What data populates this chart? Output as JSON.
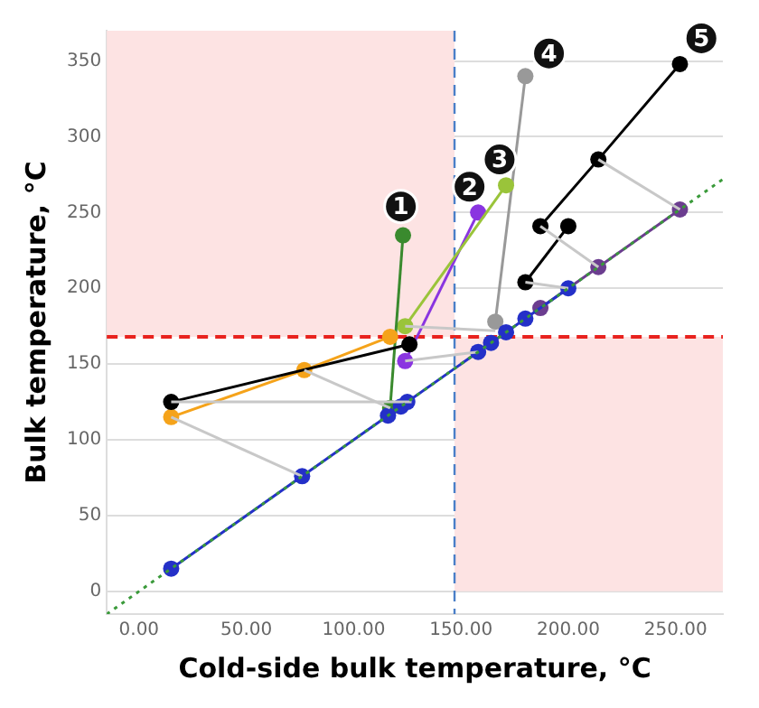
{
  "chart_data": {
    "type": "line",
    "xlabel": "Cold-side bulk temperature, °C",
    "ylabel": "Bulk temperature, °C",
    "xlim": [
      -15,
      272
    ],
    "ylim": [
      -15,
      370
    ],
    "xticks": [
      {
        "value": 0,
        "label": "0.00"
      },
      {
        "value": 50,
        "label": "50.00"
      },
      {
        "value": 100,
        "label": "100.00"
      },
      {
        "value": 150,
        "label": "150.00"
      },
      {
        "value": 200,
        "label": "200.00"
      },
      {
        "value": 250,
        "label": "250.00"
      }
    ],
    "yticks": [
      0,
      50,
      100,
      150,
      200,
      250,
      300,
      350
    ],
    "grid": "y",
    "legend": false,
    "marker": "circle",
    "line_style": "solid",
    "bands": [
      {
        "axis": "y",
        "from": 168,
        "to": 370,
        "color": "#fde3e3"
      },
      {
        "axis": "y",
        "from": 0,
        "to": 168,
        "color": "#fde3e3"
      }
    ],
    "ref_lines": [
      {
        "axis": "y",
        "value": 168,
        "color": "#e8231f",
        "line_style": "dashed"
      },
      {
        "axis": "x",
        "value": 147,
        "color": "#4a7fc8",
        "line_style": "dashed"
      }
    ],
    "series": [
      {
        "color": "#3a9a3a",
        "x": [
          -15,
          272
        ],
        "values": [
          -15,
          272
        ],
        "marker": "none",
        "line_style": "dotted"
      },
      {
        "color": "#c8c8c8",
        "x": [
          15,
          76
        ],
        "values": [
          115,
          76
        ],
        "marker": "none"
      },
      {
        "color": "#c8c8c8",
        "x": [
          77,
          117
        ],
        "values": [
          146,
          121
        ],
        "marker": "none"
      },
      {
        "color": "#c8c8c8",
        "x": [
          15,
          127
        ],
        "values": [
          125,
          125
        ],
        "marker": "none"
      },
      {
        "color": "#c8c8c8",
        "x": [
          124,
          166
        ],
        "values": [
          175,
          172
        ],
        "marker": "none"
      },
      {
        "color": "#c8c8c8",
        "x": [
          124,
          158
        ],
        "values": [
          152,
          158
        ],
        "marker": "none"
      },
      {
        "color": "#c8c8c8",
        "x": [
          187,
          214
        ],
        "values": [
          241,
          214
        ],
        "marker": "none"
      },
      {
        "color": "#c8c8c8",
        "x": [
          214,
          252
        ],
        "values": [
          285,
          252
        ],
        "marker": "none"
      },
      {
        "color": "#c8c8c8",
        "x": [
          180,
          200
        ],
        "values": [
          204,
          200
        ],
        "marker": "none"
      },
      {
        "color": "#2430c8",
        "x": [
          15,
          76,
          116,
          122,
          125,
          158,
          164,
          171,
          180,
          200
        ],
        "values": [
          15,
          76,
          116,
          122,
          125,
          158,
          164,
          171,
          180,
          200
        ]
      },
      {
        "color": "#6b3d8f",
        "x": [
          187,
          214,
          252
        ],
        "values": [
          187,
          214,
          252
        ]
      },
      {
        "color": "#000000",
        "x": [
          15,
          126
        ],
        "values": [
          125,
          163
        ]
      },
      {
        "color": "#f5a31a",
        "x": [
          15,
          77,
          117
        ],
        "values": [
          115,
          146,
          168
        ]
      },
      {
        "color": "#3a8a2e",
        "x": [
          117,
          123
        ],
        "values": [
          121,
          235
        ]
      },
      {
        "color": "#9ac43a",
        "x": [
          124,
          171
        ],
        "values": [
          175,
          268
        ]
      },
      {
        "color": "#8a35e0",
        "x": [
          124,
          158
        ],
        "values": [
          152,
          250
        ]
      },
      {
        "color": "#999999",
        "x": [
          166,
          180
        ],
        "values": [
          178,
          340
        ]
      },
      {
        "color": "#000000",
        "x": [
          180,
          200
        ],
        "values": [
          204,
          241
        ]
      },
      {
        "color": "#000000",
        "x": [
          187,
          214,
          252
        ],
        "values": [
          241,
          285,
          348
        ]
      }
    ],
    "annotations": [
      {
        "text": "1",
        "x": 122,
        "y": 254
      },
      {
        "text": "2",
        "x": 154,
        "y": 267
      },
      {
        "text": "3",
        "x": 168,
        "y": 285
      },
      {
        "text": "4",
        "x": 191,
        "y": 355
      },
      {
        "text": "5",
        "x": 262,
        "y": 365
      }
    ]
  }
}
